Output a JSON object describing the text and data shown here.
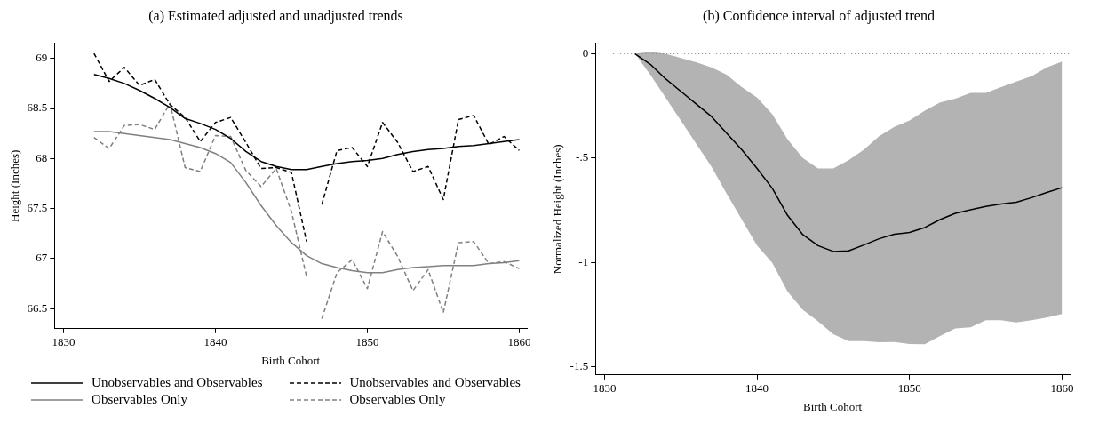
{
  "chart_data": [
    {
      "type": "line",
      "title": "(a) Estimated adjusted and unadjusted trends",
      "xlabel": "Birth Cohort",
      "ylabel": "Height (Inches)",
      "x": [
        1832,
        1833,
        1834,
        1835,
        1836,
        1837,
        1838,
        1839,
        1840,
        1841,
        1842,
        1843,
        1844,
        1845,
        1846,
        1847,
        1848,
        1849,
        1850,
        1851,
        1852,
        1853,
        1854,
        1855,
        1856,
        1857,
        1858,
        1859,
        1860
      ],
      "series": [
        {
          "name": "Unobservables and Observables",
          "color": "#000000",
          "line_style": "solid",
          "values": [
            68.84,
            68.8,
            68.75,
            68.68,
            68.6,
            68.51,
            68.4,
            68.35,
            68.29,
            68.2,
            68.07,
            67.97,
            67.92,
            67.89,
            67.89,
            67.92,
            67.95,
            67.97,
            67.98,
            68.0,
            68.04,
            68.07,
            68.09,
            68.1,
            68.12,
            68.13,
            68.15,
            68.17,
            68.19
          ]
        },
        {
          "name": "Observables Only",
          "color": "#808080",
          "line_style": "solid",
          "values": [
            68.27,
            68.27,
            68.25,
            68.23,
            68.21,
            68.19,
            68.15,
            68.11,
            68.05,
            67.96,
            67.76,
            67.53,
            67.33,
            67.16,
            67.03,
            66.95,
            66.91,
            66.88,
            66.86,
            66.86,
            66.89,
            66.91,
            66.92,
            66.93,
            66.93,
            66.93,
            66.95,
            66.96,
            66.98
          ]
        },
        {
          "name": "Unobservables and Observables",
          "color": "#000000",
          "line_style": "dashed",
          "x": [
            1832,
            1833,
            1834,
            1835,
            1836,
            1837,
            1838,
            1839,
            1840,
            1841,
            1842,
            1843,
            1844,
            1845,
            1846,
            1846.5,
            1847,
            1848,
            1849,
            1850,
            1851,
            1852,
            1853,
            1854,
            1855,
            1856,
            1857,
            1858,
            1859,
            1860
          ],
          "values": [
            69.05,
            68.77,
            68.91,
            68.73,
            68.79,
            68.54,
            68.41,
            68.17,
            68.36,
            68.41,
            68.16,
            67.9,
            67.91,
            67.86,
            67.17,
            null,
            67.54,
            68.08,
            68.11,
            67.92,
            68.36,
            68.16,
            67.87,
            67.92,
            67.59,
            68.39,
            68.43,
            68.14,
            68.22,
            68.08
          ]
        },
        {
          "name": "Observables Only",
          "color": "#808080",
          "line_style": "dashed",
          "x": [
            1832,
            1833,
            1834,
            1835,
            1836,
            1837,
            1838,
            1839,
            1840,
            1841,
            1842,
            1843,
            1844,
            1845,
            1846,
            1846.5,
            1847,
            1848,
            1849,
            1850,
            1851,
            1852,
            1853,
            1854,
            1855,
            1856,
            1857,
            1858,
            1859,
            1860
          ],
          "values": [
            68.21,
            68.1,
            68.33,
            68.34,
            68.29,
            68.55,
            67.91,
            67.87,
            68.23,
            68.22,
            67.88,
            67.72,
            67.9,
            67.47,
            66.82,
            null,
            66.4,
            66.86,
            66.99,
            66.7,
            67.27,
            67.02,
            66.68,
            66.89,
            66.46,
            67.16,
            67.17,
            66.95,
            66.97,
            66.9
          ]
        }
      ],
      "xlim": [
        1829.4,
        1860.5
      ],
      "xticks": [
        1830,
        1840,
        1850,
        1860
      ],
      "ylim": [
        66.3,
        69.15
      ],
      "yticks": [
        66.5,
        67,
        67.5,
        68,
        68.5,
        69
      ],
      "grid": false,
      "legend": "bottom",
      "marker": "none"
    },
    {
      "type": "line",
      "title": "(b) Confidence interval of adjusted trend",
      "xlabel": "Birth Cohort",
      "ylabel": "Normalized Height (Inches)",
      "x": [
        1832,
        1833,
        1834,
        1835,
        1836,
        1837,
        1838,
        1839,
        1840,
        1841,
        1842,
        1843,
        1844,
        1845,
        1846,
        1847,
        1848,
        1849,
        1850,
        1851,
        1852,
        1853,
        1854,
        1855,
        1856,
        1857,
        1858,
        1859,
        1860
      ],
      "series": [
        {
          "color": "#000000",
          "values": [
            0,
            -0.05,
            -0.12,
            -0.18,
            -0.24,
            -0.3,
            -0.38,
            -0.46,
            -0.55,
            -0.645,
            -0.775,
            -0.867,
            -0.92,
            -0.948,
            -0.945,
            -0.917,
            -0.887,
            -0.865,
            -0.857,
            -0.833,
            -0.795,
            -0.765,
            -0.748,
            -0.732,
            -0.72,
            -0.712,
            -0.69,
            -0.665,
            -0.642
          ],
          "lower": [
            0,
            -0.1,
            -0.21,
            -0.32,
            -0.43,
            -0.54,
            -0.67,
            -0.795,
            -0.92,
            -1.003,
            -1.14,
            -1.228,
            -1.283,
            -1.345,
            -1.378,
            -1.378,
            -1.383,
            -1.382,
            -1.392,
            -1.393,
            -1.353,
            -1.317,
            -1.312,
            -1.278,
            -1.278,
            -1.288,
            -1.278,
            -1.265,
            -1.248
          ],
          "upper": [
            0,
            0.01,
            0,
            -0.02,
            -0.04,
            -0.065,
            -0.1,
            -0.16,
            -0.21,
            -0.29,
            -0.41,
            -0.5,
            -0.55,
            -0.55,
            -0.51,
            -0.46,
            -0.395,
            -0.35,
            -0.32,
            -0.273,
            -0.233,
            -0.215,
            -0.187,
            -0.187,
            -0.16,
            -0.133,
            -0.107,
            -0.065,
            -0.037
          ]
        }
      ],
      "ref_lines": [
        {
          "axis": "y",
          "value": 0,
          "color": "#808080",
          "line_style": "dotted"
        }
      ],
      "xlim": [
        1829.4,
        1860.5
      ],
      "xticks": [
        1830,
        1840,
        1850,
        1860
      ],
      "ylim": [
        -1.54,
        0.05
      ],
      "yticks": [
        -1.5,
        -1,
        {
          "value": -0.5,
          "label": "-.5"
        },
        0
      ],
      "grid": false,
      "legend": false,
      "marker": "none"
    }
  ]
}
